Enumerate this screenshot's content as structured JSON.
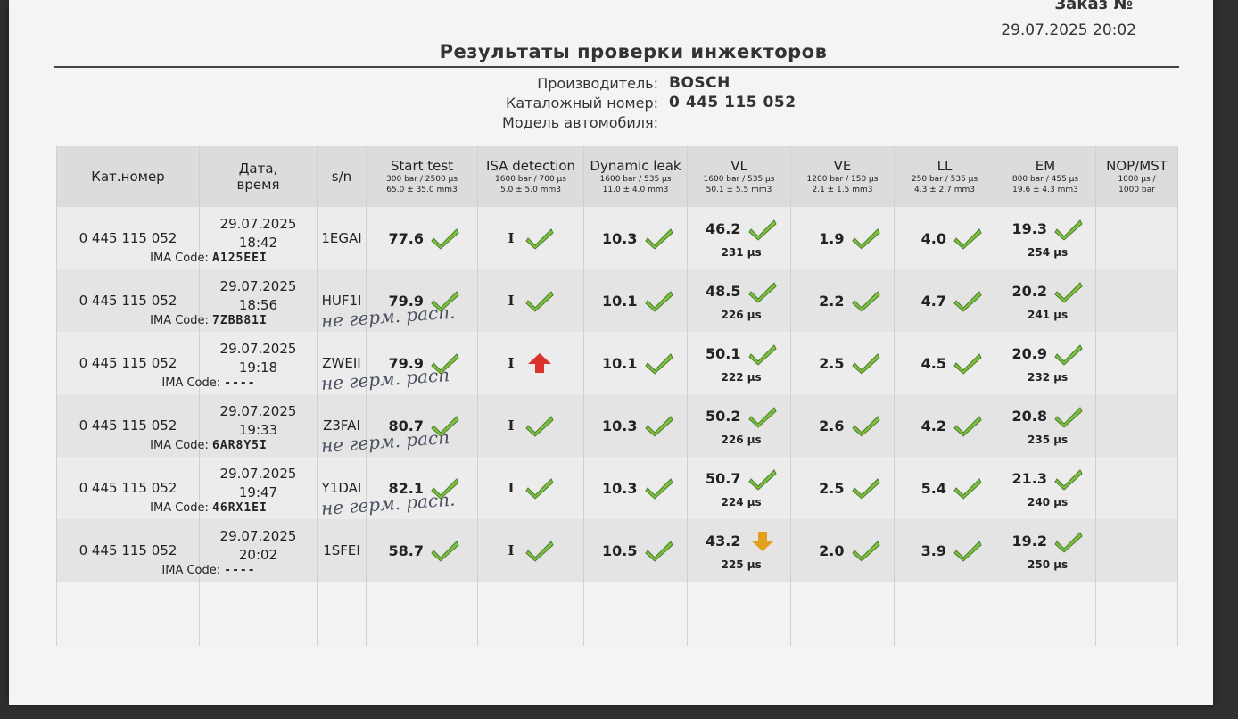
{
  "header": {
    "order_label": "Заказ №",
    "order_datetime": "29.07.2025  20:02",
    "title": "Результаты проверки инжекторов",
    "manufacturer_label": "Производитель:",
    "manufacturer": "BOSCH",
    "catalog_label": "Каталожный номер:",
    "catalog_number": "0 445 115 052",
    "car_model_label": "Модель автомобиля:",
    "car_model": ""
  },
  "columns": [
    {
      "title": "Кат.номер",
      "sub1": "",
      "sub2": ""
    },
    {
      "title": "Дата,\nвремя",
      "sub1": "",
      "sub2": ""
    },
    {
      "title": "s/n",
      "sub1": "",
      "sub2": ""
    },
    {
      "title": "Start test",
      "sub1": "300 bar / 2500 μs",
      "sub2": "65.0 ± 35.0 mm3"
    },
    {
      "title": "ISA detection",
      "sub1": "1600 bar / 700 μs",
      "sub2": "5.0 ± 5.0 mm3"
    },
    {
      "title": "Dynamic leak",
      "sub1": "1600 bar / 535 μs",
      "sub2": "11.0 ± 4.0 mm3"
    },
    {
      "title": "VL",
      "sub1": "1600 bar / 535 μs",
      "sub2": "50.1 ± 5.5 mm3"
    },
    {
      "title": "VE",
      "sub1": "1200 bar / 150 μs",
      "sub2": "2.1 ± 1.5 mm3"
    },
    {
      "title": "LL",
      "sub1": "250 bar / 535 μs",
      "sub2": "4.3 ± 2.7 mm3"
    },
    {
      "title": "EM",
      "sub1": "800 bar / 455 μs",
      "sub2": "19.6 ± 4.3 mm3"
    },
    {
      "title": "NOP/MST",
      "sub1": "1000 μs /",
      "sub2": "1000 bar"
    }
  ],
  "ima_label": "IMA Code:",
  "rows": [
    {
      "cat": "0 445 115 052",
      "date": "29.07.2025",
      "time": "18:42",
      "ima": "A125EEI",
      "sn": "1EGAI",
      "note": "",
      "start": "77.6",
      "start_s": "ok",
      "isa": "I",
      "isa_s": "ok",
      "dyn": "10.3",
      "dyn_s": "ok",
      "vl": "46.2",
      "vl_s": "ok",
      "vl_t": "231 μs",
      "ve": "1.9",
      "ve_s": "ok",
      "ll": "4.0",
      "ll_s": "ok",
      "em": "19.3",
      "em_s": "ok",
      "em_t": "254 μs"
    },
    {
      "cat": "0 445 115 052",
      "date": "29.07.2025",
      "time": "18:56",
      "ima": "7ZBB81I",
      "sn": "HUF1I",
      "note": "не герм. расп.",
      "start": "79.9",
      "start_s": "ok",
      "isa": "I",
      "isa_s": "ok",
      "dyn": "10.1",
      "dyn_s": "ok",
      "vl": "48.5",
      "vl_s": "ok",
      "vl_t": "226 μs",
      "ve": "2.2",
      "ve_s": "ok",
      "ll": "4.7",
      "ll_s": "ok",
      "em": "20.2",
      "em_s": "ok",
      "em_t": "241 μs"
    },
    {
      "cat": "0 445 115 052",
      "date": "29.07.2025",
      "time": "19:18",
      "ima": "----",
      "sn": "ZWEII",
      "note": "не герм. расп",
      "start": "79.9",
      "start_s": "ok",
      "isa": "I",
      "isa_s": "high",
      "dyn": "10.1",
      "dyn_s": "ok",
      "vl": "50.1",
      "vl_s": "ok",
      "vl_t": "222 μs",
      "ve": "2.5",
      "ve_s": "ok",
      "ll": "4.5",
      "ll_s": "ok",
      "em": "20.9",
      "em_s": "ok",
      "em_t": "232 μs"
    },
    {
      "cat": "0 445 115 052",
      "date": "29.07.2025",
      "time": "19:33",
      "ima": "6AR8Y5I",
      "sn": "Z3FAI",
      "note": "не герм. расп",
      "start": "80.7",
      "start_s": "ok",
      "isa": "I",
      "isa_s": "ok",
      "dyn": "10.3",
      "dyn_s": "ok",
      "vl": "50.2",
      "vl_s": "ok",
      "vl_t": "226 μs",
      "ve": "2.6",
      "ve_s": "ok",
      "ll": "4.2",
      "ll_s": "ok",
      "em": "20.8",
      "em_s": "ok",
      "em_t": "235 μs"
    },
    {
      "cat": "0 445 115 052",
      "date": "29.07.2025",
      "time": "19:47",
      "ima": "46RX1EI",
      "sn": "Y1DAI",
      "note": "не герм. расп.",
      "start": "82.1",
      "start_s": "ok",
      "isa": "I",
      "isa_s": "ok",
      "dyn": "10.3",
      "dyn_s": "ok",
      "vl": "50.7",
      "vl_s": "ok",
      "vl_t": "224 μs",
      "ve": "2.5",
      "ve_s": "ok",
      "ll": "5.4",
      "ll_s": "ok",
      "em": "21.3",
      "em_s": "ok",
      "em_t": "240 μs"
    },
    {
      "cat": "0 445 115 052",
      "date": "29.07.2025",
      "time": "20:02",
      "ima": "----",
      "sn": "1SFEI",
      "note": "",
      "start": "58.7",
      "start_s": "ok",
      "isa": "I",
      "isa_s": "ok",
      "dyn": "10.5",
      "dyn_s": "ok",
      "vl": "43.2",
      "vl_s": "low",
      "vl_t": "225 μs",
      "ve": "2.0",
      "ve_s": "ok",
      "ll": "3.9",
      "ll_s": "ok",
      "em": "19.2",
      "em_s": "ok",
      "em_t": "250 μs"
    }
  ],
  "colors": {
    "ok": "#7cc242",
    "high": "#d9332b",
    "low": "#e2a01e"
  },
  "icons": {
    "ok": "checkmark-icon",
    "high": "arrow-up-icon",
    "low": "arrow-down-icon"
  }
}
